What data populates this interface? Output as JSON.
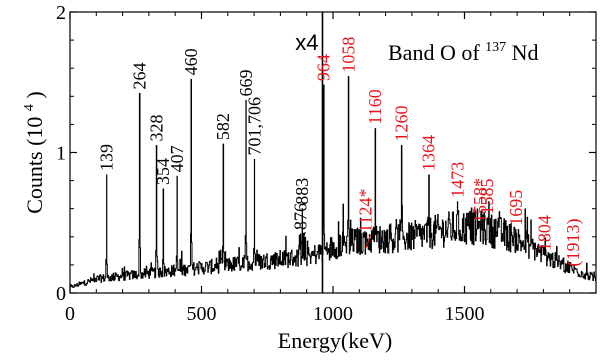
{
  "chart_data": {
    "type": "line",
    "title": "Band O of",
    "title_nucleus": {
      "mass": "137",
      "element": "Nd"
    },
    "xlabel": "Energy(keV)",
    "ylabel": "Counts (10",
    "ylabel_exp": "4",
    "ylabel_close": ")",
    "xlim": [
      0,
      2000
    ],
    "ylim": [
      0,
      2
    ],
    "xticks": [
      0,
      500,
      1000,
      1500
    ],
    "yticks": [
      0,
      1,
      2
    ],
    "grid": false,
    "scale_marker": {
      "x": 960,
      "label": "x4"
    },
    "colors": {
      "black": "#000000",
      "red": "#e8141a"
    },
    "peaks": [
      {
        "x": 139,
        "y": 0.84,
        "label": "139",
        "color": "black"
      },
      {
        "x": 264,
        "y": 1.42,
        "label": "264",
        "color": "black"
      },
      {
        "x": 328,
        "y": 1.05,
        "label": "328",
        "color": "black"
      },
      {
        "x": 354,
        "y": 0.74,
        "label": "354",
        "color": "black"
      },
      {
        "x": 407,
        "y": 0.83,
        "label": "407",
        "color": "black"
      },
      {
        "x": 460,
        "y": 1.52,
        "label": "460",
        "color": "black"
      },
      {
        "x": 582,
        "y": 1.06,
        "label": "582",
        "color": "black"
      },
      {
        "x": 669,
        "y": 1.37,
        "label": "669",
        "color": "black"
      },
      {
        "x": 701,
        "y": 0.95,
        "label": "701,706",
        "color": "black"
      },
      {
        "x": 876,
        "y": 0.42,
        "label": "876",
        "color": "black"
      },
      {
        "x": 883,
        "y": 0.6,
        "label": "883",
        "color": "black"
      },
      {
        "x": 964,
        "y": 1.48,
        "label": "964",
        "color": "red"
      },
      {
        "x": 1058,
        "y": 1.54,
        "label": "1058",
        "color": "red"
      },
      {
        "x": 1124,
        "y": 0.4,
        "label": "1124*",
        "color": "red"
      },
      {
        "x": 1160,
        "y": 1.17,
        "label": "1160",
        "color": "red"
      },
      {
        "x": 1260,
        "y": 1.05,
        "label": "1260",
        "color": "red"
      },
      {
        "x": 1364,
        "y": 0.84,
        "label": "1364",
        "color": "red"
      },
      {
        "x": 1473,
        "y": 0.65,
        "label": "1473",
        "color": "red"
      },
      {
        "x": 1558,
        "y": 0.47,
        "label": "1558*",
        "color": "red"
      },
      {
        "x": 1585,
        "y": 0.53,
        "label": "1585",
        "color": "red"
      },
      {
        "x": 1695,
        "y": 0.45,
        "label": "1695",
        "color": "red"
      },
      {
        "x": 1804,
        "y": 0.27,
        "label": "1804",
        "color": "red"
      },
      {
        "x": 1913,
        "y": 0.16,
        "label": "(1913)",
        "color": "red"
      }
    ],
    "background": [
      [
        0,
        0.04
      ],
      [
        100,
        0.1
      ],
      [
        300,
        0.14
      ],
      [
        500,
        0.18
      ],
      [
        700,
        0.22
      ],
      [
        900,
        0.26
      ],
      [
        940,
        0.28
      ],
      [
        960,
        0.3
      ],
      [
        1050,
        0.36
      ],
      [
        1150,
        0.38
      ],
      [
        1300,
        0.4
      ],
      [
        1450,
        0.46
      ],
      [
        1550,
        0.47
      ],
      [
        1650,
        0.42
      ],
      [
        1750,
        0.33
      ],
      [
        1850,
        0.22
      ],
      [
        1950,
        0.14
      ],
      [
        2000,
        0.1
      ]
    ]
  }
}
